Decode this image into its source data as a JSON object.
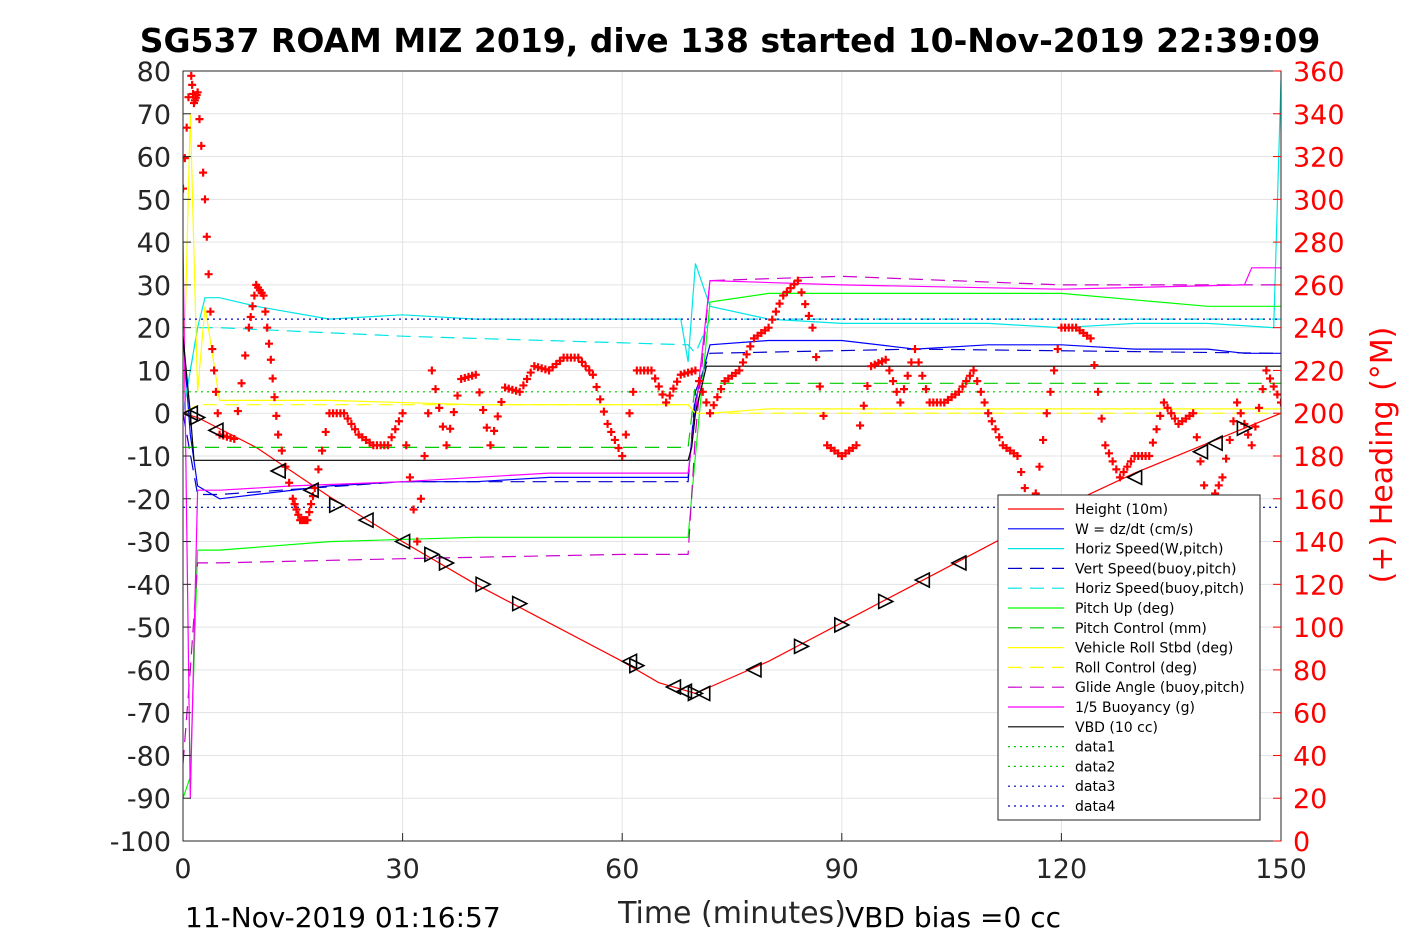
{
  "chart_data": {
    "type": "line",
    "title": "SG537 ROAM MIZ 2019, dive 138 started 10-Nov-2019 22:39:09",
    "xlabel": "Time (minutes)",
    "ylabel_right": "(+) Heading (°M)",
    "footer_left": "11-Nov-2019 01:16:57",
    "footer_right": "VBD bias =0 cc",
    "xlim": [
      0,
      150
    ],
    "ylim_left": [
      -100,
      80
    ],
    "ylim_right": [
      0,
      360
    ],
    "x_ticks": [
      "0",
      "30",
      "60",
      "90",
      "120",
      "150"
    ],
    "y_ticks_left": [
      "80",
      "70",
      "60",
      "50",
      "40",
      "30",
      "20",
      "10",
      "0",
      "-10",
      "-20",
      "-30",
      "-40",
      "-50",
      "-60",
      "-70",
      "-80",
      "-90",
      "-100"
    ],
    "y_ticks_right": [
      "360",
      "340",
      "320",
      "300",
      "280",
      "260",
      "240",
      "220",
      "200",
      "180",
      "160",
      "140",
      "120",
      "100",
      "80",
      "60",
      "40",
      "20",
      "0"
    ],
    "grid": true,
    "legend_position": "bottom-right",
    "series": [
      {
        "name": "Height (10m)",
        "color": "#ff0000",
        "style": "solid",
        "x": [
          0,
          2,
          10,
          20,
          30,
          40,
          50,
          60,
          65,
          70,
          80,
          90,
          100,
          110,
          120,
          130,
          140,
          145,
          150
        ],
        "values": [
          0,
          -1,
          -8,
          -19.5,
          -30,
          -40,
          -49,
          -58,
          -63,
          -65.5,
          -58,
          -49,
          -40,
          -31,
          -22,
          -14,
          -7,
          -3.5,
          0
        ]
      },
      {
        "name": "W = dz/dt (cm/s)",
        "color": "#0000ff",
        "style": "solid",
        "x": [
          0,
          1,
          2,
          5,
          10,
          20,
          30,
          40,
          50,
          60,
          69,
          70,
          72,
          80,
          90,
          100,
          110,
          120,
          130,
          140,
          145,
          150
        ],
        "values": [
          18,
          -5,
          -17,
          -20,
          -19,
          -17,
          -16,
          -16,
          -15,
          -15,
          -15,
          3,
          16,
          17,
          17,
          15,
          16,
          16,
          15,
          15,
          14,
          14
        ]
      },
      {
        "name": "Horiz Speed(W,pitch)",
        "color": "#00e5e5",
        "style": "solid",
        "x": [
          0,
          2,
          3,
          5,
          10,
          20,
          30,
          40,
          50,
          60,
          68,
          69,
          70,
          72,
          80,
          90,
          100,
          110,
          120,
          130,
          140,
          149,
          150
        ],
        "values": [
          0,
          20,
          27,
          27,
          25,
          22,
          23,
          22,
          22,
          22,
          22,
          12,
          35,
          25,
          22,
          21,
          21,
          21,
          20,
          21,
          21,
          20,
          78
        ]
      },
      {
        "name": "Vert Speed(buoy,pitch)",
        "color": "#0000cc",
        "style": "dashed",
        "x": [
          0,
          2,
          5,
          30,
          69,
          70,
          72,
          100,
          150
        ],
        "values": [
          0,
          -19,
          -19,
          -16,
          -16,
          5,
          14,
          15,
          14
        ]
      },
      {
        "name": "Horiz Speed(buoy,pitch)",
        "color": "#00e5e5",
        "style": "dashed",
        "x": [
          0,
          2,
          5,
          30,
          69,
          70,
          72,
          100,
          150
        ],
        "values": [
          0,
          20,
          20,
          18,
          16,
          14,
          22,
          22,
          22
        ]
      },
      {
        "name": "Pitch Up (deg)",
        "color": "#00ff00",
        "style": "solid",
        "x": [
          0,
          1,
          2,
          5,
          20,
          40,
          60,
          69,
          70,
          72,
          80,
          100,
          120,
          140,
          150
        ],
        "values": [
          -90,
          -85,
          -32,
          -32,
          -30,
          -29,
          -29,
          -29,
          -10,
          26,
          28,
          28,
          28,
          25,
          25
        ]
      },
      {
        "name": "Pitch Control (mm)",
        "color": "#00cc00",
        "style": "dashed",
        "x": [
          0,
          2,
          69,
          70,
          150
        ],
        "values": [
          -8,
          -8,
          -8,
          7,
          7
        ]
      },
      {
        "name": "Vehicle Roll Stbd (deg)",
        "color": "#ffff00",
        "style": "solid",
        "x": [
          0,
          1,
          2,
          3,
          5,
          20,
          40,
          60,
          69,
          70,
          72,
          80,
          100,
          120,
          140,
          150
        ],
        "values": [
          0,
          70,
          5,
          25,
          3,
          3,
          2,
          2,
          2,
          0,
          0,
          1,
          1,
          1,
          1,
          1
        ]
      },
      {
        "name": "Roll Control (deg)",
        "color": "#ffff00",
        "style": "dashed",
        "x": [
          0,
          2,
          69,
          70,
          150
        ],
        "values": [
          0,
          2,
          2,
          0,
          0
        ]
      },
      {
        "name": "Glide Angle (buoy,pitch)",
        "color": "#cc00cc",
        "style": "dashed",
        "x": [
          0,
          1,
          2,
          5,
          30,
          60,
          69,
          70,
          72,
          90,
          120,
          150
        ],
        "values": [
          -82,
          -60,
          -35,
          -35,
          -34,
          -33,
          -33,
          -5,
          31,
          32,
          30,
          30
        ]
      },
      {
        "name": "1/5 Buoyancy (g)",
        "color": "#ff00ff",
        "style": "solid",
        "x": [
          0,
          1,
          2,
          5,
          15,
          30,
          50,
          69,
          70,
          72,
          90,
          120,
          145,
          146,
          150
        ],
        "values": [
          40,
          -90,
          -18,
          -18,
          -17,
          -16,
          -14,
          -14,
          0,
          31,
          30,
          29,
          30,
          34,
          34
        ]
      },
      {
        "name": "VBD (10 cc)",
        "color": "#000000",
        "style": "solid",
        "x": [
          0,
          1,
          1.5,
          69,
          69.5,
          70,
          71.5,
          72,
          150
        ],
        "values": [
          18,
          0,
          -11,
          -11,
          -8,
          0,
          11,
          11,
          11
        ]
      },
      {
        "name": "data1",
        "color": "#00cc00",
        "style": "dotted",
        "x": [
          0,
          150
        ],
        "values": [
          5,
          5
        ]
      },
      {
        "name": "data2",
        "color": "#00cc00",
        "style": "dotted",
        "x": [
          0,
          150
        ],
        "values": [
          -22,
          -22
        ]
      },
      {
        "name": "data3",
        "color": "#0000cc",
        "style": "dotted",
        "x": [
          0,
          150
        ],
        "values": [
          22,
          22
        ]
      },
      {
        "name": "data4",
        "color": "#0000cc",
        "style": "dotted",
        "x": [
          0,
          150
        ],
        "values": [
          -22,
          -22
        ]
      }
    ],
    "heading": {
      "axis": "right",
      "color": "#ff0000",
      "marker": "+",
      "x": [
        0,
        1,
        1.5,
        2,
        3,
        4,
        5,
        7,
        9,
        10,
        11,
        12,
        13,
        15,
        16,
        17,
        18,
        20,
        22,
        24,
        26,
        28,
        30,
        32,
        34,
        36,
        38,
        40,
        42,
        44,
        46,
        48,
        50,
        52,
        54,
        56,
        58,
        60,
        62,
        64,
        66,
        68,
        70,
        72,
        74,
        76,
        78,
        80,
        82,
        84,
        86,
        88,
        90,
        92,
        94,
        96,
        98,
        100,
        102,
        104,
        106,
        108,
        110,
        112,
        114,
        116,
        118,
        120,
        122,
        124,
        126,
        128,
        130,
        132,
        134,
        136,
        138,
        140,
        142,
        144,
        146,
        148,
        150
      ],
      "values": [
        305,
        362,
        345,
        350,
        300,
        230,
        190,
        188,
        240,
        260,
        255,
        225,
        190,
        160,
        150,
        150,
        165,
        200,
        200,
        190,
        185,
        185,
        200,
        140,
        220,
        185,
        216,
        218,
        185,
        212,
        210,
        222,
        220,
        226,
        226,
        218,
        195,
        180,
        220,
        220,
        205,
        218,
        220,
        200,
        215,
        220,
        235,
        240,
        255,
        262,
        240,
        185,
        180,
        185,
        222,
        225,
        205,
        230,
        205,
        205,
        210,
        220,
        200,
        185,
        180,
        150,
        200,
        240,
        240,
        235,
        185,
        170,
        180,
        180,
        205,
        195,
        200,
        155,
        170,
        205,
        185,
        220,
        205
      ]
    },
    "triangle_markers": [
      {
        "x": 1,
        "y": 0,
        "dir": "left"
      },
      {
        "x": 2,
        "y": -1,
        "dir": "right"
      },
      {
        "x": 4.5,
        "y": -4,
        "dir": "left"
      },
      {
        "x": 13,
        "y": -13.5,
        "dir": "left"
      },
      {
        "x": 17.5,
        "y": -18,
        "dir": "left"
      },
      {
        "x": 21,
        "y": -21.5,
        "dir": "right"
      },
      {
        "x": 25,
        "y": -25,
        "dir": "left"
      },
      {
        "x": 30,
        "y": -30,
        "dir": "left"
      },
      {
        "x": 34,
        "y": -33,
        "dir": "right"
      },
      {
        "x": 36,
        "y": -35,
        "dir": "right"
      },
      {
        "x": 41,
        "y": -40,
        "dir": "right"
      },
      {
        "x": 46,
        "y": -44.5,
        "dir": "right"
      },
      {
        "x": 61,
        "y": -58,
        "dir": "left"
      },
      {
        "x": 62,
        "y": -59,
        "dir": "right"
      },
      {
        "x": 67,
        "y": -64,
        "dir": "left"
      },
      {
        "x": 68.5,
        "y": -65,
        "dir": "left"
      },
      {
        "x": 70,
        "y": -65.5,
        "dir": "right"
      },
      {
        "x": 71,
        "y": -65.5,
        "dir": "left"
      },
      {
        "x": 78,
        "y": -60,
        "dir": "left"
      },
      {
        "x": 84.5,
        "y": -54.5,
        "dir": "right"
      },
      {
        "x": 90,
        "y": -49.5,
        "dir": "right"
      },
      {
        "x": 96,
        "y": -44,
        "dir": "right"
      },
      {
        "x": 101,
        "y": -39,
        "dir": "left"
      },
      {
        "x": 106,
        "y": -35,
        "dir": "left"
      },
      {
        "x": 130,
        "y": -15,
        "dir": "left"
      },
      {
        "x": 139,
        "y": -9,
        "dir": "left"
      },
      {
        "x": 141,
        "y": -7,
        "dir": "left"
      },
      {
        "x": 145,
        "y": -3.5,
        "dir": "right"
      }
    ]
  }
}
